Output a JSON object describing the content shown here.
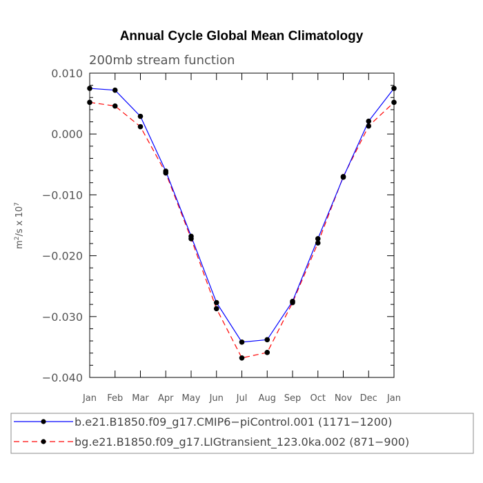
{
  "chart_data": {
    "type": "line",
    "title": "Annual Cycle Global Mean Climatology",
    "subtitle": "200mb stream function",
    "ylabel_base": "m",
    "ylabel_sup": "2",
    "ylabel_mid": "/s x 10",
    "ylabel_exp": "7",
    "xlabel": "",
    "categories": [
      "Jan",
      "Feb",
      "Mar",
      "Apr",
      "May",
      "Jun",
      "Jul",
      "Aug",
      "Sep",
      "Oct",
      "Nov",
      "Dec",
      "Jan"
    ],
    "ylim": [
      -0.04,
      0.01
    ],
    "yticks": [
      0.01,
      0.0,
      -0.01,
      -0.02,
      -0.03,
      -0.04
    ],
    "ytick_labels": [
      "0.010",
      "0.000",
      "−0.010",
      "−0.020",
      "−0.030",
      "−0.040"
    ],
    "yminor_step": 0.002,
    "grid": false,
    "legend_position": "bottom",
    "series": [
      {
        "name": "b.e21.B1850.f09_g17.CMIP6−piControl.001 (1171−1200)",
        "color": "#0000ff",
        "line_style": "solid",
        "marker": "filled-circle",
        "values": [
          0.0075,
          0.0072,
          0.0029,
          -0.0061,
          -0.0168,
          -0.0277,
          -0.0342,
          -0.0338,
          -0.0275,
          -0.0172,
          -0.0071,
          0.0021,
          0.0075
        ]
      },
      {
        "name": "bg.e21.B1850.f09_g17.LIGtransient_123.0ka.002 (871−900)",
        "color": "#ff0000",
        "line_style": "dashed",
        "marker": "filled-circle",
        "values": [
          0.0052,
          0.0046,
          0.0012,
          -0.0064,
          -0.0172,
          -0.0287,
          -0.0368,
          -0.0359,
          -0.0277,
          -0.0179,
          -0.007,
          0.0013,
          0.0052
        ]
      }
    ]
  }
}
